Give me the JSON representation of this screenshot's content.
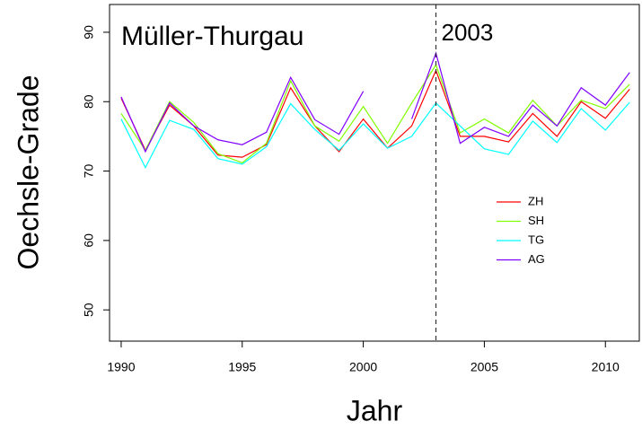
{
  "chart_data": {
    "type": "line",
    "title": "Müller-Thurgau",
    "x_label": "Jahr",
    "y_label": "Oechsle-Grade",
    "x": [
      1990,
      1991,
      1992,
      1993,
      1994,
      1995,
      1996,
      1997,
      1998,
      1999,
      2000,
      2001,
      2002,
      2003,
      2004,
      2005,
      2006,
      2007,
      2008,
      2009,
      2010,
      2011
    ],
    "series": [
      {
        "name": "ZH",
        "color": "#ff0000",
        "values": [
          80.5,
          73,
          79.5,
          76.5,
          72.3,
          72,
          73.8,
          82,
          76.5,
          72.8,
          77.5,
          73.3,
          76.5,
          84.5,
          75,
          75,
          74.2,
          78.3,
          75,
          80,
          77.6,
          81.8
        ]
      },
      {
        "name": "SH",
        "color": "#80ff00",
        "values": [
          78.3,
          73,
          80,
          77,
          72.5,
          71.2,
          74,
          83,
          76.5,
          74.3,
          79.3,
          74,
          79.8,
          85.3,
          75.5,
          77.5,
          75.5,
          80.2,
          76.5,
          80.2,
          79,
          82.5
        ]
      },
      {
        "name": "TG",
        "color": "#00ffff",
        "values": [
          77.5,
          70.5,
          77.3,
          76,
          71.8,
          71,
          73.5,
          79.7,
          76,
          73,
          76.8,
          73.3,
          75,
          79.8,
          76.5,
          73.2,
          72.4,
          77.2,
          74.1,
          79,
          75.9,
          79.9
        ]
      },
      {
        "name": "AG",
        "color": "#8000ff",
        "values": [
          80.7,
          72.8,
          79.8,
          76.5,
          74.5,
          73.8,
          75.6,
          83.5,
          77.4,
          75.3,
          81.5,
          null,
          77.5,
          87,
          74,
          76.3,
          75,
          79.5,
          76.5,
          82,
          79.5,
          84.2
        ]
      }
    ],
    "xlim": [
      1989.52,
      2011.4
    ],
    "ylim": [
      45.5,
      94
    ],
    "xticks": [
      1990,
      1995,
      2000,
      2005,
      2010
    ],
    "yticks": [
      50,
      60,
      70,
      80,
      90
    ],
    "annotations": [
      {
        "x": 2003,
        "label": "2003"
      }
    ],
    "grid": false,
    "legend": "right"
  }
}
